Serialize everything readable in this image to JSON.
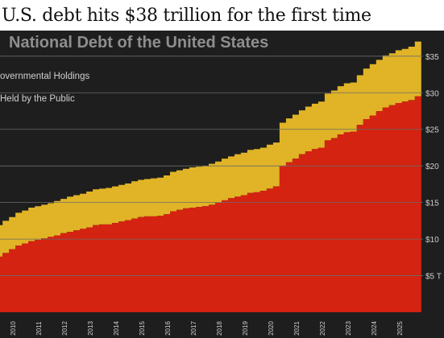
{
  "headline": "U.S. debt hits $38 trillion for the first time",
  "colors": {
    "background": "#1e1e1e",
    "intragovernmental": "#e0b426",
    "public": "#d42310",
    "gridline": "#6a6a6a",
    "title": "#8e8e8e",
    "text": "#cfcfcf"
  },
  "chart_data": {
    "type": "area",
    "title": "National Debt of the United States",
    "stacked": true,
    "x": [
      2009.0,
      2009.25,
      2009.5,
      2009.75,
      2010.0,
      2010.25,
      2010.5,
      2010.75,
      2011.0,
      2011.25,
      2011.5,
      2011.75,
      2012.0,
      2012.25,
      2012.5,
      2012.75,
      2013.0,
      2013.25,
      2013.5,
      2013.75,
      2014.0,
      2014.25,
      2014.5,
      2014.75,
      2015.0,
      2015.25,
      2015.5,
      2015.75,
      2016.0,
      2016.25,
      2016.5,
      2016.75,
      2017.0,
      2017.25,
      2017.5,
      2017.75,
      2018.0,
      2018.25,
      2018.5,
      2018.75,
      2019.0,
      2019.25,
      2019.5,
      2019.75,
      2020.0,
      2020.25,
      2020.5,
      2020.75,
      2021.0,
      2021.25,
      2021.5,
      2021.75,
      2022.0,
      2022.25,
      2022.5,
      2022.75,
      2023.0,
      2023.25,
      2023.5,
      2023.75,
      2024.0,
      2024.25,
      2024.5,
      2024.75,
      2025.0,
      2025.25,
      2025.5,
      2025.75
    ],
    "series": [
      {
        "name": "Debt Held by the Public",
        "color": "#d42310",
        "values": [
          7.0,
          7.6,
          8.1,
          8.6,
          9.1,
          9.4,
          9.7,
          9.9,
          10.1,
          10.3,
          10.5,
          10.8,
          11.0,
          11.2,
          11.4,
          11.6,
          11.9,
          12.0,
          12.0,
          12.2,
          12.4,
          12.6,
          12.8,
          13.0,
          13.1,
          13.1,
          13.2,
          13.4,
          13.8,
          14.0,
          14.2,
          14.3,
          14.4,
          14.5,
          14.7,
          15.0,
          15.3,
          15.6,
          15.8,
          16.0,
          16.3,
          16.4,
          16.6,
          16.9,
          17.2,
          20.0,
          20.5,
          21.0,
          21.6,
          22.0,
          22.3,
          22.5,
          23.5,
          23.8,
          24.3,
          24.6,
          24.7,
          25.6,
          26.4,
          26.9,
          27.5,
          28.0,
          28.3,
          28.6,
          28.8,
          29.0,
          29.5,
          30.3
        ]
      },
      {
        "name": "Intragovernmental Holdings",
        "color": "#e0b426",
        "values": [
          4.3,
          4.3,
          4.4,
          4.4,
          4.5,
          4.5,
          4.6,
          4.6,
          4.6,
          4.6,
          4.7,
          4.7,
          4.8,
          4.8,
          4.8,
          4.9,
          4.9,
          4.9,
          5.0,
          5.0,
          5.0,
          5.0,
          5.1,
          5.1,
          5.1,
          5.2,
          5.2,
          5.3,
          5.4,
          5.4,
          5.4,
          5.5,
          5.5,
          5.5,
          5.6,
          5.6,
          5.7,
          5.7,
          5.8,
          5.8,
          5.9,
          5.9,
          5.9,
          6.0,
          6.0,
          5.9,
          6.0,
          6.0,
          6.0,
          6.1,
          6.2,
          6.3,
          6.4,
          6.5,
          6.6,
          6.7,
          6.7,
          6.8,
          6.9,
          7.0,
          7.0,
          7.1,
          7.1,
          7.2,
          7.2,
          7.3,
          7.5,
          7.6
        ]
      }
    ],
    "legend": [
      "Intragovernmental Holdings",
      "Debt Held by the Public"
    ],
    "legend_visible": [
      "overnmental Holdings",
      "Held by the Public"
    ],
    "legend_placement": "top-left",
    "y_ticks": [
      5,
      10,
      15,
      20,
      25,
      30,
      35
    ],
    "y_tick_labels": [
      "$5 T",
      "$10",
      "$15",
      "$20",
      "$25",
      "$30",
      "$35"
    ],
    "ylim": [
      0,
      38.5
    ],
    "x_ticks": [
      2010,
      2011,
      2012,
      2013,
      2014,
      2015,
      2016,
      2017,
      2018,
      2019,
      2020,
      2021,
      2022,
      2023,
      2024,
      2025
    ],
    "xlim": [
      2009.4,
      2025.82
    ],
    "grid": true,
    "xlabel": "",
    "ylabel": ""
  }
}
